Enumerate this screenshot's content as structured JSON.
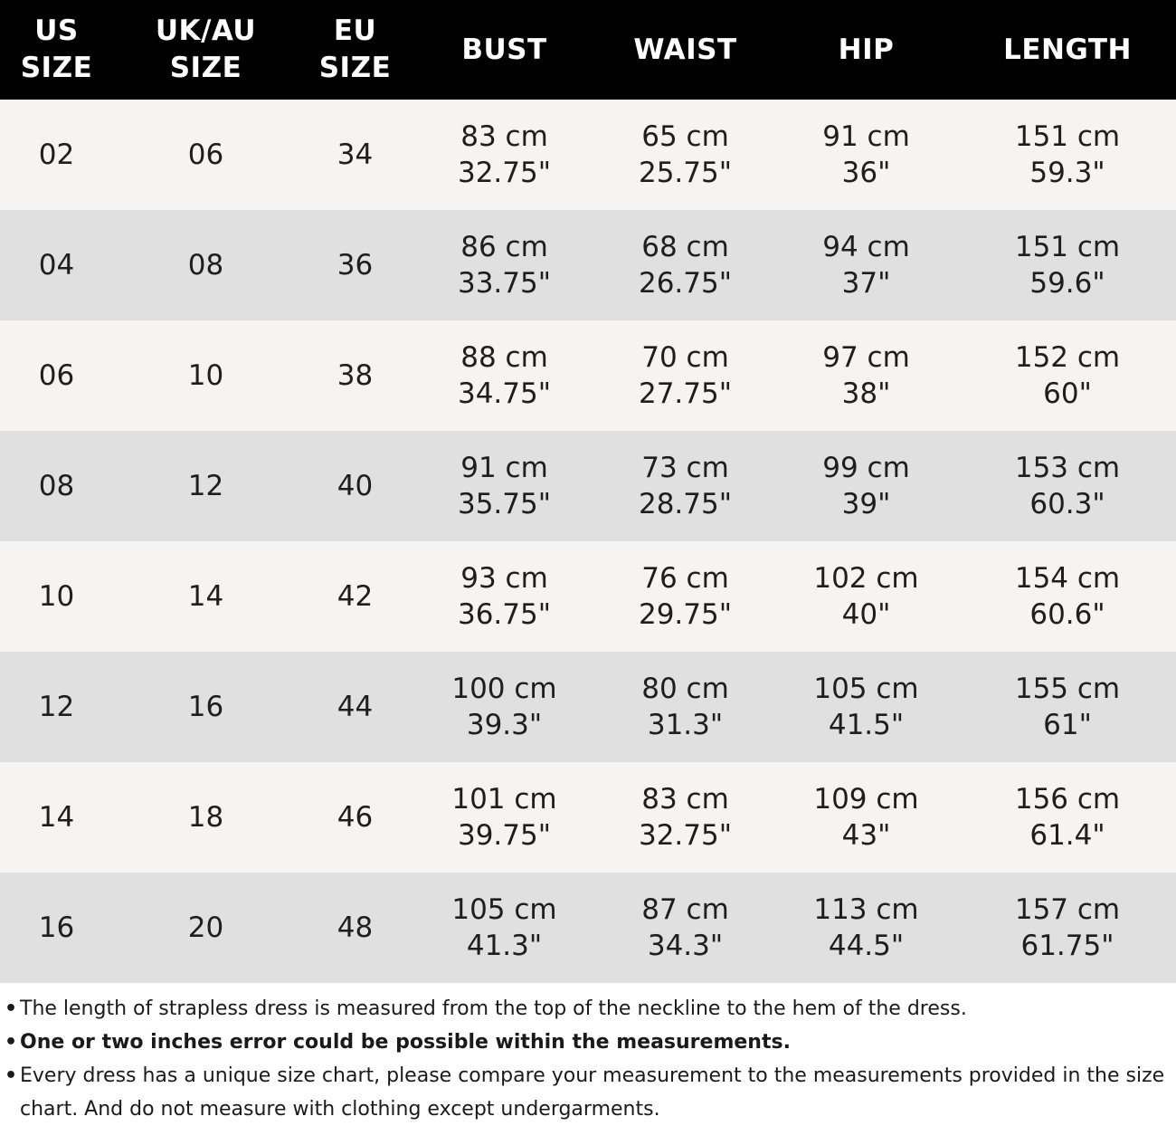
{
  "table": {
    "headers": [
      "US\nSIZE",
      "UK/AU\nSIZE",
      "EU\nSIZE",
      "BUST",
      "WAIST",
      "HIP",
      "LENGTH"
    ],
    "rows": [
      {
        "us": "02",
        "uk": "06",
        "eu": "34",
        "bust_cm": "83 cm",
        "bust_in": "32.75\"",
        "waist_cm": "65 cm",
        "waist_in": "25.75\"",
        "hip_cm": "91 cm",
        "hip_in": "36\"",
        "length_cm": "151 cm",
        "length_in": "59.3\""
      },
      {
        "us": "04",
        "uk": "08",
        "eu": "36",
        "bust_cm": "86 cm",
        "bust_in": "33.75\"",
        "waist_cm": "68 cm",
        "waist_in": "26.75\"",
        "hip_cm": "94 cm",
        "hip_in": "37\"",
        "length_cm": "151 cm",
        "length_in": "59.6\""
      },
      {
        "us": "06",
        "uk": "10",
        "eu": "38",
        "bust_cm": "88 cm",
        "bust_in": "34.75\"",
        "waist_cm": "70 cm",
        "waist_in": "27.75\"",
        "hip_cm": "97 cm",
        "hip_in": "38\"",
        "length_cm": "152 cm",
        "length_in": "60\""
      },
      {
        "us": "08",
        "uk": "12",
        "eu": "40",
        "bust_cm": "91 cm",
        "bust_in": "35.75\"",
        "waist_cm": "73 cm",
        "waist_in": "28.75\"",
        "hip_cm": "99 cm",
        "hip_in": "39\"",
        "length_cm": "153 cm",
        "length_in": "60.3\""
      },
      {
        "us": "10",
        "uk": "14",
        "eu": "42",
        "bust_cm": "93 cm",
        "bust_in": "36.75\"",
        "waist_cm": "76 cm",
        "waist_in": "29.75\"",
        "hip_cm": "102 cm",
        "hip_in": "40\"",
        "length_cm": "154 cm",
        "length_in": "60.6\""
      },
      {
        "us": "12",
        "uk": "16",
        "eu": "44",
        "bust_cm": "100 cm",
        "bust_in": "39.3\"",
        "waist_cm": "80 cm",
        "waist_in": "31.3\"",
        "hip_cm": "105 cm",
        "hip_in": "41.5\"",
        "length_cm": "155 cm",
        "length_in": "61\""
      },
      {
        "us": "14",
        "uk": "18",
        "eu": "46",
        "bust_cm": "101 cm",
        "bust_in": "39.75\"",
        "waist_cm": "83 cm",
        "waist_in": "32.75\"",
        "hip_cm": "109 cm",
        "hip_in": "43\"",
        "length_cm": "156 cm",
        "length_in": "61.4\""
      },
      {
        "us": "16",
        "uk": "20",
        "eu": "48",
        "bust_cm": "105 cm",
        "bust_in": "41.3\"",
        "waist_cm": "87 cm",
        "waist_in": "34.3\"",
        "hip_cm": "113 cm",
        "hip_in": "44.5\"",
        "length_cm": "157 cm",
        "length_in": "61.75\""
      }
    ]
  },
  "notes": [
    {
      "bullet": "•",
      "text": "The length of strapless dress is measured from the top of the neckline to the hem of the dress.",
      "bold": false
    },
    {
      "bullet": "•",
      "text": "One or two inches error could be possible within the measurements.",
      "bold": true
    },
    {
      "bullet": "•",
      "text": "Every dress has a unique size chart, please compare your measurement to the measurements provided in the size chart. And do not measure with clothing except undergarments.",
      "bold": false
    }
  ],
  "colors": {
    "header_bg": "#000000",
    "header_text": "#ffffff",
    "row_light": "#f5f4f2",
    "row_dark": "#dfe0df"
  }
}
